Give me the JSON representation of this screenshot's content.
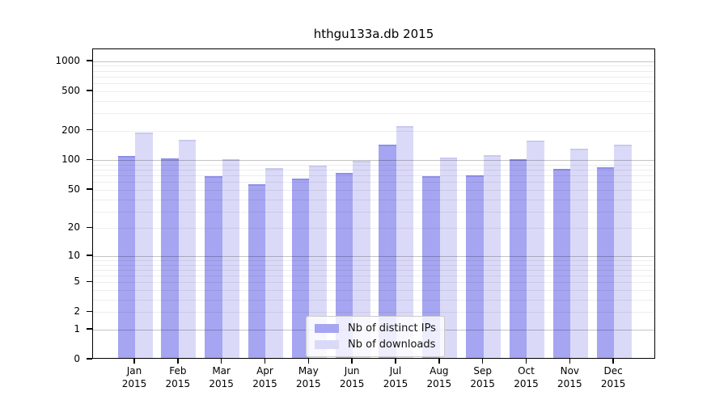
{
  "chart_data": {
    "type": "bar",
    "title": "hthgu133a.db 2015",
    "categories": [
      "Jan",
      "Feb",
      "Mar",
      "Apr",
      "May",
      "Jun",
      "Jul",
      "Aug",
      "Sep",
      "Oct",
      "Nov",
      "Dec"
    ],
    "category_year": "2015",
    "series": [
      {
        "name": "Nb of distinct IPs",
        "color": "#a5a5f2",
        "edge_color": "#8f8fe8",
        "values": [
          107,
          100,
          66,
          55,
          63,
          71,
          139,
          66,
          68,
          98,
          79,
          82
        ]
      },
      {
        "name": "Nb of downloads",
        "color": "#dadaf8",
        "edge_color": "#c9c9f0",
        "values": [
          185,
          156,
          98,
          80,
          85,
          96,
          215,
          102,
          108,
          152,
          127,
          140
        ]
      }
    ],
    "y_scale": "log1p",
    "y_ticks": [
      0,
      1,
      2,
      5,
      10,
      20,
      50,
      100,
      200,
      500,
      1000
    ],
    "ylim": [
      0,
      1320
    ],
    "xlabel": "",
    "ylabel": "",
    "grid": "horizontal major+minor",
    "legend_position": "bottom-center",
    "background": "#ffffff",
    "axis_color": "#000000",
    "major_grid_color": "#c6c6c6",
    "minor_grid_color": "#ececec"
  }
}
